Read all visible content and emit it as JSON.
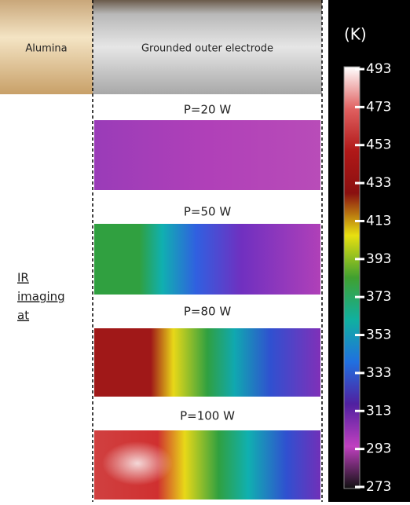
{
  "photo": {
    "left_label": "Alumina",
    "right_label": "Grounded outer electrode"
  },
  "side_label": {
    "lines": [
      "IR",
      "imaging",
      "at"
    ]
  },
  "panels": [
    {
      "label": "P=20 W"
    },
    {
      "label": "P=50 W"
    },
    {
      "label": "P=80 W"
    },
    {
      "label": "P=100 W"
    }
  ],
  "colorbar": {
    "unit": "(K)",
    "ticks": [
      493,
      473,
      453,
      433,
      413,
      393,
      373,
      353,
      333,
      313,
      293,
      273
    ]
  }
}
